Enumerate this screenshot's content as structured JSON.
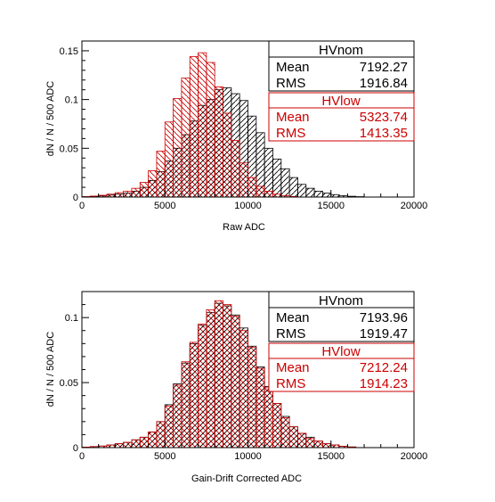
{
  "colors": {
    "nom": "#000000",
    "low": "#cc0000"
  },
  "x_tick_labels": [
    "0",
    "5000",
    "10000",
    "15000",
    "20000"
  ],
  "chart_data": [
    {
      "type": "histogram",
      "xlabel": "Raw ADC",
      "ylabel": "dN / N / 500 ADC",
      "xlim": [
        0,
        20000
      ],
      "ylim": [
        0,
        0.16
      ],
      "bin_width": 500,
      "y_tick_labels": [
        "0",
        "0.05",
        "0.1",
        "0.15"
      ],
      "y_ticks": [
        0,
        0.05,
        0.1,
        0.15
      ],
      "legend_position": "top-right",
      "series": [
        {
          "name": "HVnom",
          "color": "#000000",
          "hatch": "diagonal-up",
          "stats": {
            "mean_label": "Mean",
            "mean": "7192.27",
            "rms_label": "RMS",
            "rms": "1916.84"
          },
          "bin_edges_start": 0,
          "values": [
            0.0004,
            0.0008,
            0.0012,
            0.002,
            0.003,
            0.004,
            0.006,
            0.01,
            0.017,
            0.026,
            0.037,
            0.05,
            0.064,
            0.078,
            0.094,
            0.1,
            0.11,
            0.112,
            0.106,
            0.099,
            0.083,
            0.066,
            0.05,
            0.039,
            0.029,
            0.02,
            0.013,
            0.009,
            0.006,
            0.004,
            0.0025,
            0.0015,
            0.0008,
            0.0004
          ]
        },
        {
          "name": "HVlow",
          "color": "#cc0000",
          "hatch": "diagonal-down",
          "stats": {
            "mean_label": "Mean",
            "mean": "5323.74",
            "rms_label": "RMS",
            "rms": "1413.35"
          },
          "bin_edges_start": 0,
          "values": [
            0.0004,
            0.001,
            0.0018,
            0.003,
            0.0045,
            0.006,
            0.009,
            0.015,
            0.027,
            0.047,
            0.077,
            0.101,
            0.122,
            0.144,
            0.148,
            0.138,
            0.113,
            0.086,
            0.058,
            0.035,
            0.02,
            0.011,
            0.006,
            0.003,
            0.0015,
            0.0006
          ]
        }
      ]
    },
    {
      "type": "histogram",
      "xlabel": "Gain-Drift Corrected ADC",
      "ylabel": "dN / N / 500 ADC",
      "xlim": [
        0,
        20000
      ],
      "ylim": [
        0,
        0.12
      ],
      "bin_width": 500,
      "y_tick_labels": [
        "0",
        "0.05",
        "0.1"
      ],
      "y_ticks": [
        0,
        0.05,
        0.1
      ],
      "legend_position": "top-right",
      "series": [
        {
          "name": "HVnom",
          "color": "#000000",
          "hatch": "diagonal-up",
          "stats": {
            "mean_label": "Mean",
            "mean": "7193.96",
            "rms_label": "RMS",
            "rms": "1919.47"
          },
          "bin_edges_start": 0,
          "values": [
            0.0004,
            0.0008,
            0.0012,
            0.002,
            0.003,
            0.004,
            0.006,
            0.008,
            0.012,
            0.02,
            0.033,
            0.049,
            0.065,
            0.08,
            0.094,
            0.104,
            0.111,
            0.109,
            0.102,
            0.092,
            0.078,
            0.062,
            0.047,
            0.034,
            0.024,
            0.016,
            0.011,
            0.008,
            0.005,
            0.003,
            0.002,
            0.001,
            0.0005
          ]
        },
        {
          "name": "HVlow",
          "color": "#cc0000",
          "hatch": "diagonal-down",
          "stats": {
            "mean_label": "Mean",
            "mean": "7212.24",
            "rms_label": "RMS",
            "rms": "1914.23"
          },
          "bin_edges_start": 0,
          "values": [
            0.0004,
            0.0008,
            0.0012,
            0.002,
            0.003,
            0.004,
            0.006,
            0.008,
            0.012,
            0.02,
            0.032,
            0.048,
            0.066,
            0.081,
            0.095,
            0.106,
            0.113,
            0.11,
            0.101,
            0.09,
            0.077,
            0.061,
            0.046,
            0.034,
            0.023,
            0.016,
            0.011,
            0.007,
            0.005,
            0.003,
            0.002,
            0.001,
            0.0005
          ]
        }
      ]
    }
  ]
}
